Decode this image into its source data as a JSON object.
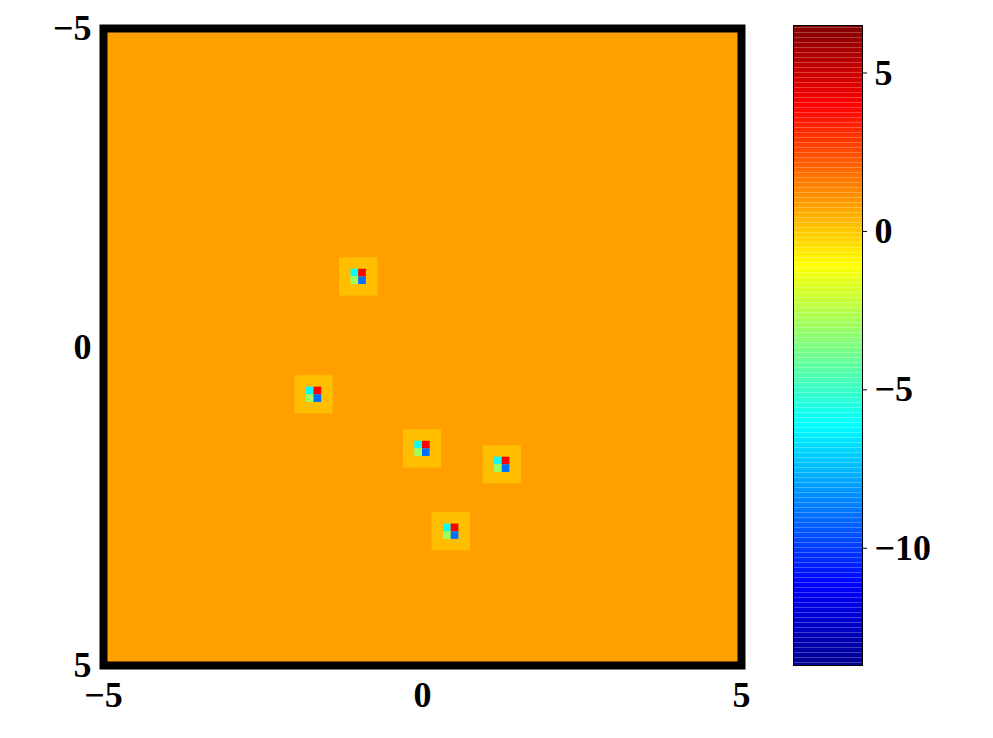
{
  "chart_data": {
    "type": "heatmap",
    "xlim": [
      -5,
      5
    ],
    "ylim": [
      -5,
      5
    ],
    "xticks": [
      -5,
      0,
      5
    ],
    "yticks": [
      -5,
      0,
      5
    ],
    "cells": [
      {
        "x1": -5,
        "x2": 5,
        "y1": -5,
        "y2": 5,
        "value": 0.8
      },
      {
        "x1": -1.3,
        "x2": -0.7,
        "y1": -1.4,
        "y2": -0.8,
        "value": 0.2
      },
      {
        "x1": -2.0,
        "x2": -1.4,
        "y1": 0.45,
        "y2": 1.05,
        "value": 0.2
      },
      {
        "x1": -0.3,
        "x2": 0.3,
        "y1": 1.3,
        "y2": 1.9,
        "value": 0.2
      },
      {
        "x1": 0.95,
        "x2": 1.55,
        "y1": 1.55,
        "y2": 2.15,
        "value": 0.2
      },
      {
        "x1": 0.15,
        "x2": 0.75,
        "y1": 2.6,
        "y2": 3.2,
        "value": 0.2
      },
      {
        "x1": -1.12,
        "x2": -1.0,
        "y1": -1.22,
        "y2": -1.1,
        "value": -6
      },
      {
        "x1": -1.0,
        "x2": -0.88,
        "y1": -1.22,
        "y2": -1.1,
        "value": 4
      },
      {
        "x1": -1.12,
        "x2": -1.0,
        "y1": -1.1,
        "y2": -0.98,
        "value": -3
      },
      {
        "x1": -1.0,
        "x2": -0.88,
        "y1": -1.1,
        "y2": -0.98,
        "value": -9
      },
      {
        "x1": -1.82,
        "x2": -1.7,
        "y1": 0.63,
        "y2": 0.75,
        "value": -6
      },
      {
        "x1": -1.7,
        "x2": -1.58,
        "y1": 0.63,
        "y2": 0.75,
        "value": 4
      },
      {
        "x1": -1.82,
        "x2": -1.7,
        "y1": 0.75,
        "y2": 0.87,
        "value": -3
      },
      {
        "x1": -1.7,
        "x2": -1.58,
        "y1": 0.75,
        "y2": 0.87,
        "value": -9
      },
      {
        "x1": -0.12,
        "x2": 0.0,
        "y1": 1.48,
        "y2": 1.6,
        "value": -6
      },
      {
        "x1": 0.0,
        "x2": 0.12,
        "y1": 1.48,
        "y2": 1.6,
        "value": 4
      },
      {
        "x1": -0.12,
        "x2": 0.0,
        "y1": 1.6,
        "y2": 1.72,
        "value": -3
      },
      {
        "x1": 0.0,
        "x2": 0.12,
        "y1": 1.6,
        "y2": 1.72,
        "value": -9
      },
      {
        "x1": 1.13,
        "x2": 1.25,
        "y1": 1.73,
        "y2": 1.85,
        "value": -6
      },
      {
        "x1": 1.25,
        "x2": 1.37,
        "y1": 1.73,
        "y2": 1.85,
        "value": 4
      },
      {
        "x1": 1.13,
        "x2": 1.25,
        "y1": 1.85,
        "y2": 1.97,
        "value": -3
      },
      {
        "x1": 1.25,
        "x2": 1.37,
        "y1": 1.85,
        "y2": 1.97,
        "value": -9
      },
      {
        "x1": 0.33,
        "x2": 0.45,
        "y1": 2.78,
        "y2": 2.9,
        "value": -6
      },
      {
        "x1": 0.45,
        "x2": 0.57,
        "y1": 2.78,
        "y2": 2.9,
        "value": 4
      },
      {
        "x1": 0.33,
        "x2": 0.45,
        "y1": 2.9,
        "y2": 3.02,
        "value": -3
      },
      {
        "x1": 0.45,
        "x2": 0.57,
        "y1": 2.9,
        "y2": 3.02,
        "value": -9
      }
    ],
    "colorbar": {
      "range": [
        -13.7,
        6.5
      ],
      "ticks": [
        5,
        0,
        -5,
        -10
      ]
    }
  }
}
